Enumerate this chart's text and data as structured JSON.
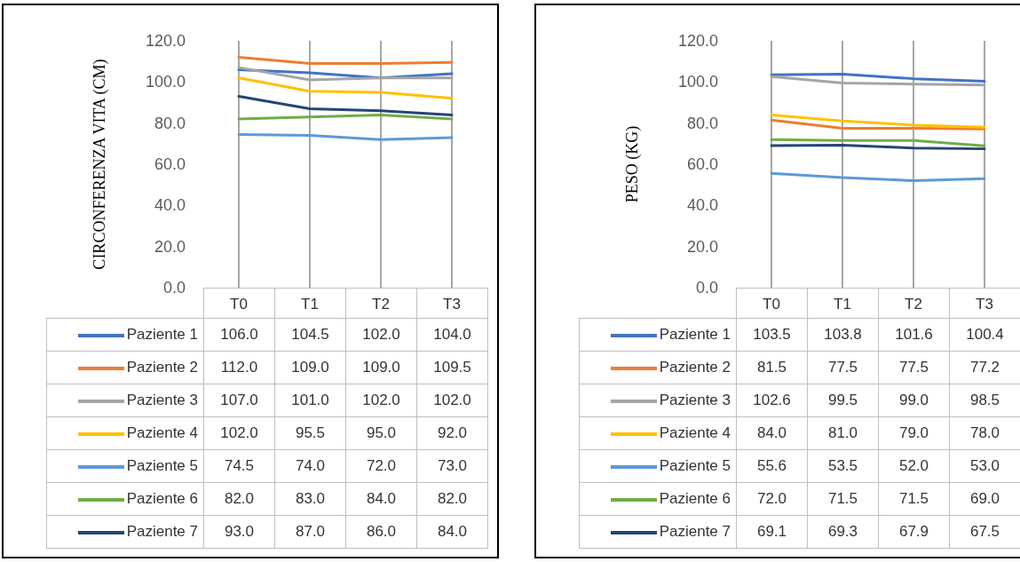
{
  "chart_data": [
    {
      "type": "line",
      "ylabel": "CIRCONFERENZA VITA (CM)",
      "categories": [
        "T0",
        "T1",
        "T2",
        "T3"
      ],
      "ylim": [
        0,
        120
      ],
      "yticks": [
        {
          "value": 0,
          "label": "0.0"
        },
        {
          "value": 20,
          "label": "20.0"
        },
        {
          "value": 40,
          "label": "40.0"
        },
        {
          "value": 60,
          "label": "60.0"
        },
        {
          "value": 80,
          "label": "80.0"
        },
        {
          "value": 100,
          "label": "100.0"
        },
        {
          "value": 120,
          "label": "120.0"
        }
      ],
      "grid": "x",
      "legend": "bottom left",
      "marker": "none",
      "line_style": "solid",
      "series": [
        {
          "name": "Paziente 1",
          "color": "#4472c4",
          "values": [
            106,
            104.5,
            102,
            104
          ],
          "value_labels": [
            "106.0",
            "104.5",
            "102.0",
            "104.0"
          ]
        },
        {
          "name": "Paziente 2",
          "color": "#ed7d31",
          "values": [
            112,
            109,
            109,
            109.5
          ],
          "value_labels": [
            "112.0",
            "109.0",
            "109.0",
            "109.5"
          ]
        },
        {
          "name": "Paziente 3",
          "color": "#a5a5a5",
          "values": [
            107,
            101,
            102,
            102
          ],
          "value_labels": [
            "107.0",
            "101.0",
            "102.0",
            "102.0"
          ]
        },
        {
          "name": "Paziente 4",
          "color": "#ffc000",
          "values": [
            102,
            95.5,
            95,
            92
          ],
          "value_labels": [
            "102.0",
            "95.5",
            "95.0",
            "92.0"
          ]
        },
        {
          "name": "Paziente 5",
          "color": "#5b9bd5",
          "values": [
            74.5,
            74,
            72,
            73
          ],
          "value_labels": [
            "74.5",
            "74.0",
            "72.0",
            "73.0"
          ]
        },
        {
          "name": "Paziente 6",
          "color": "#70ad47",
          "values": [
            82,
            83,
            84,
            82
          ],
          "value_labels": [
            "82.0",
            "83.0",
            "84.0",
            "82.0"
          ]
        },
        {
          "name": "Paziente 7",
          "color": "#264478",
          "values": [
            93,
            87,
            86,
            84
          ],
          "value_labels": [
            "93.0",
            "87.0",
            "86.0",
            "84.0"
          ]
        }
      ]
    },
    {
      "type": "line",
      "ylabel": "PESO (KG)",
      "categories": [
        "T0",
        "T1",
        "T2",
        "T3"
      ],
      "ylim": [
        0,
        120
      ],
      "yticks": [
        {
          "value": 0,
          "label": "0.0"
        },
        {
          "value": 20,
          "label": "20.0"
        },
        {
          "value": 40,
          "label": "40.0"
        },
        {
          "value": 60,
          "label": "60.0"
        },
        {
          "value": 80,
          "label": "80.0"
        },
        {
          "value": 100,
          "label": "100.0"
        },
        {
          "value": 120,
          "label": "120.0"
        }
      ],
      "grid": "x",
      "legend": "bottom left",
      "marker": "none",
      "line_style": "solid",
      "series": [
        {
          "name": "Paziente 1",
          "color": "#4472c4",
          "values": [
            103.5,
            103.8,
            101.6,
            100.4
          ],
          "value_labels": [
            "103.5",
            "103.8",
            "101.6",
            "100.4"
          ]
        },
        {
          "name": "Paziente 2",
          "color": "#ed7d31",
          "values": [
            81.5,
            77.5,
            77.5,
            77.2
          ],
          "value_labels": [
            "81.5",
            "77.5",
            "77.5",
            "77.2"
          ]
        },
        {
          "name": "Paziente 3",
          "color": "#a5a5a5",
          "values": [
            102.6,
            99.5,
            99,
            98.5
          ],
          "value_labels": [
            "102.6",
            "99.5",
            "99.0",
            "98.5"
          ]
        },
        {
          "name": "Paziente 4",
          "color": "#ffc000",
          "values": [
            84,
            81,
            79,
            78
          ],
          "value_labels": [
            "84.0",
            "81.0",
            "79.0",
            "78.0"
          ]
        },
        {
          "name": "Paziente 5",
          "color": "#5b9bd5",
          "values": [
            55.6,
            53.5,
            52,
            53
          ],
          "value_labels": [
            "55.6",
            "53.5",
            "52.0",
            "53.0"
          ]
        },
        {
          "name": "Paziente 6",
          "color": "#70ad47",
          "values": [
            72,
            71.5,
            71.5,
            69
          ],
          "value_labels": [
            "72.0",
            "71.5",
            "71.5",
            "69.0"
          ]
        },
        {
          "name": "Paziente 7",
          "color": "#264478",
          "values": [
            69.1,
            69.3,
            67.9,
            67.5
          ],
          "value_labels": [
            "69.1",
            "69.3",
            "67.9",
            "67.5"
          ]
        }
      ]
    }
  ]
}
